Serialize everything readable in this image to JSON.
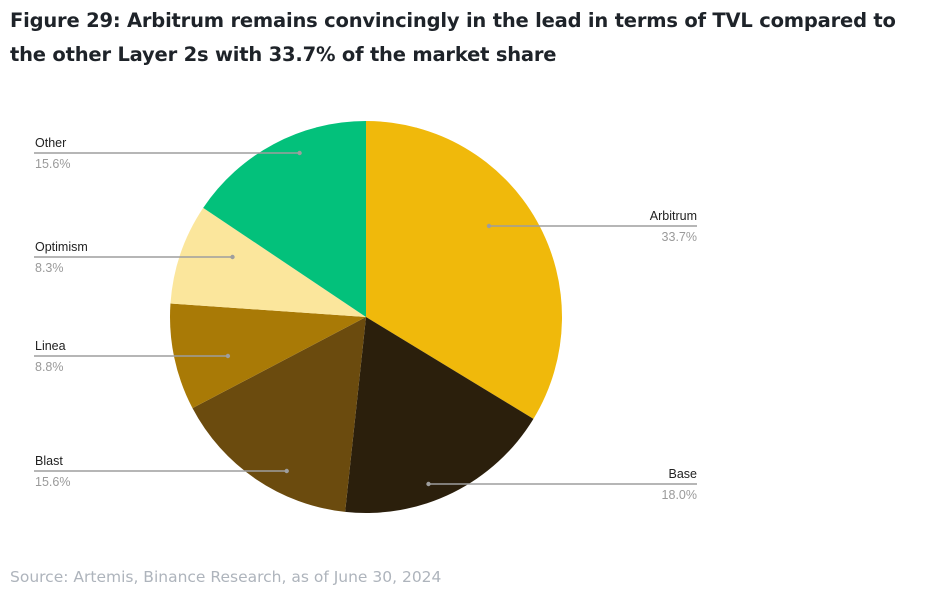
{
  "title": "Figure 29: Arbitrum remains convincingly in the lead in terms of TVL compared to the other Layer 2s with 33.7% of the market share",
  "source": "Source: Artemis, Binance Research, as of June 30, 2024",
  "chart_data": {
    "type": "pie",
    "title": "Figure 29: Arbitrum remains convincingly in the lead in terms of TVL compared to the other Layer 2s with 33.7% of the market share",
    "slices": [
      {
        "label": "Arbitrum",
        "value": 33.7,
        "display": "33.7%",
        "color": "#f0b90b"
      },
      {
        "label": "Base",
        "value": 18.0,
        "display": "18.0%",
        "color": "#2b1f0c"
      },
      {
        "label": "Blast",
        "value": 15.6,
        "display": "15.6%",
        "color": "#6b4b0e"
      },
      {
        "label": "Linea",
        "value": 8.8,
        "display": "8.8%",
        "color": "#a97a06"
      },
      {
        "label": "Optimism",
        "value": 8.3,
        "display": "8.3%",
        "color": "#fbe69c"
      },
      {
        "label": "Other",
        "value": 15.6,
        "display": "15.6%",
        "color": "#03c17b"
      }
    ],
    "start_angle": "12 o'clock",
    "direction": "clockwise",
    "legend": "none"
  }
}
